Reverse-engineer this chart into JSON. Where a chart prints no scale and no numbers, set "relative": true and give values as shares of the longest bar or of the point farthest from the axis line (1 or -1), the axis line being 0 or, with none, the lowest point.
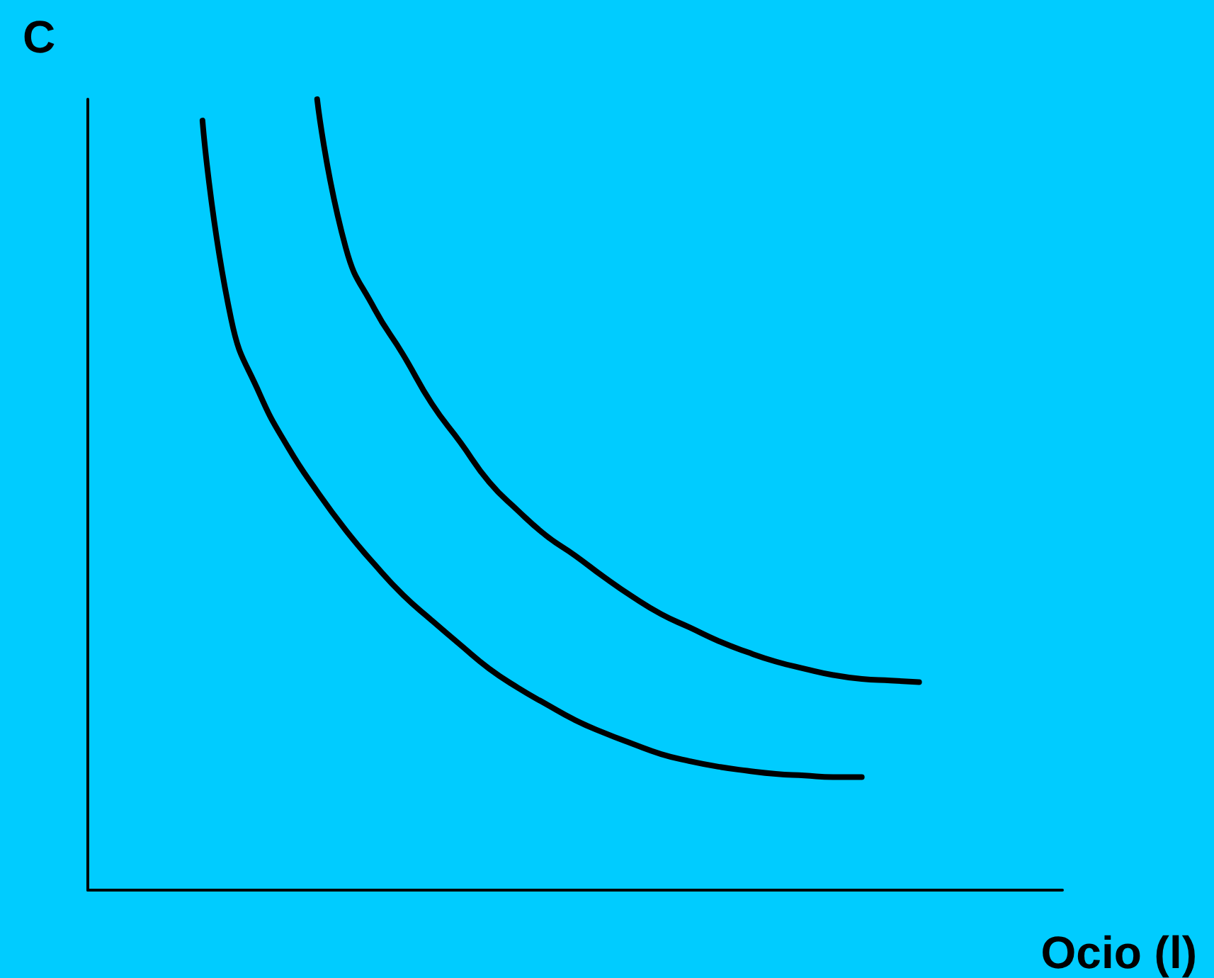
{
  "chart_data": {
    "type": "line",
    "relative": true,
    "xlabel": "Ocio (l)",
    "ylabel": "C",
    "categories": [
      null,
      null,
      null,
      null,
      null,
      null,
      null,
      null,
      null,
      null,
      null,
      null,
      null,
      null,
      null,
      null,
      null,
      null,
      null,
      null,
      null,
      null,
      null,
      null,
      null,
      null,
      null,
      null,
      null,
      null,
      null,
      null,
      null,
      null,
      null
    ],
    "series": [
      {
        "color": "#000000",
        "values": [
          null,
          null,
          null,
          null,
          0.973,
          0.722,
          0.627,
          0.559,
          0.504,
          0.455,
          0.412,
          0.373,
          0.341,
          0.31,
          0.28,
          0.256,
          0.235,
          0.215,
          0.199,
          0.185,
          0.172,
          0.163,
          0.156,
          0.151,
          0.147,
          0.145,
          0.143,
          0.143,
          null,
          null,
          null,
          null,
          null,
          null,
          null
        ]
      },
      {
        "color": "#000000",
        "values": [
          null,
          null,
          null,
          null,
          null,
          null,
          null,
          null,
          1,
          0.812,
          0.735,
          0.677,
          0.615,
          0.566,
          0.516,
          0.48,
          0.448,
          0.423,
          0.396,
          0.371,
          0.349,
          0.332,
          0.315,
          0.301,
          0.289,
          0.28,
          0.272,
          0.267,
          0.265,
          0.263,
          null,
          null,
          null,
          null,
          null
        ]
      }
    ],
    "grid": false,
    "marker": "none",
    "line_style": "solid"
  }
}
